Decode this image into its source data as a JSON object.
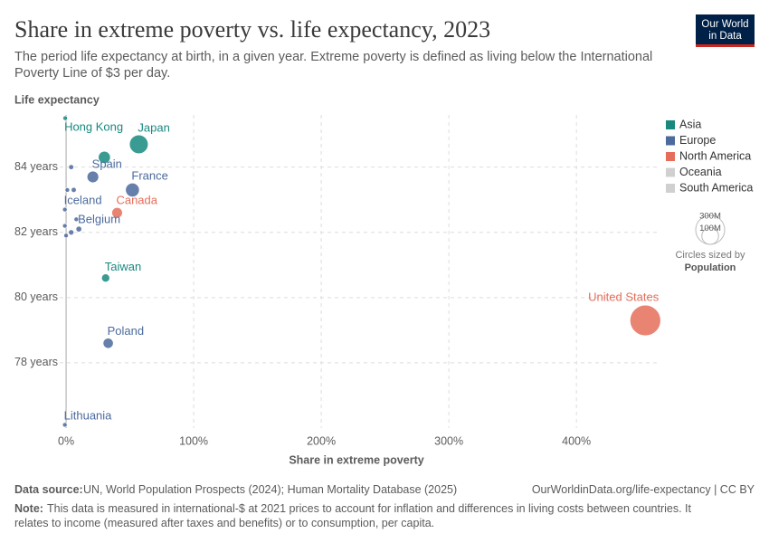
{
  "header": {
    "logo_lines": [
      "Our World",
      "in Data"
    ]
  },
  "chart_data": {
    "type": "scatter",
    "title": "Share in extreme poverty vs. life expectancy, 2023",
    "subtitle_lines": [
      "The period life expectancy at birth, in a given year. Extreme poverty is defined as living below the International",
      "Poverty Line of $3 per day."
    ],
    "y_label": "Life expectancy",
    "x_label": "Share in extreme poverty",
    "xlim": [
      -5,
      463
    ],
    "ylim": [
      76,
      85.6
    ],
    "xticks": [
      {
        "value": 0,
        "label": "0%"
      },
      {
        "value": 100,
        "label": "100%"
      },
      {
        "value": 200,
        "label": "200%"
      },
      {
        "value": 300,
        "label": "300%"
      },
      {
        "value": 400,
        "label": "400%"
      }
    ],
    "yticks": [
      {
        "value": 78,
        "label": "78 years"
      },
      {
        "value": 80,
        "label": "80 years"
      },
      {
        "value": 82,
        "label": "82 years"
      },
      {
        "value": 84,
        "label": "84 years"
      }
    ],
    "grid": true,
    "legend_position": "top-right",
    "size_label": "Circles sized by",
    "size_variable": "Population",
    "size_legend": [
      {
        "value": 300000000,
        "label": "300M"
      },
      {
        "value": 100000000,
        "label": "100M"
      }
    ],
    "series": [
      {
        "name": "Asia",
        "color": "#18897f",
        "x": [
          -0.7,
          57,
          30,
          31
        ],
        "values": [
          85.5,
          84.7,
          84.3,
          80.6
        ],
        "sizes": [
          7500000,
          124000000,
          51700000,
          23400000
        ],
        "labels": [
          "Hong Kong",
          "Japan",
          null,
          "Taiwan"
        ]
      },
      {
        "name": "Europe",
        "color": "#4c6a9c",
        "x": [
          21,
          52,
          -1,
          10,
          33,
          -1,
          4,
          1,
          6,
          -1,
          8,
          0,
          4
        ],
        "values": [
          83.7,
          83.3,
          82.7,
          82.1,
          78.6,
          76.1,
          84.0,
          83.3,
          83.3,
          82.2,
          82.4,
          81.9,
          82.0
        ],
        "sizes": [
          48000000,
          68000000,
          400000,
          11800000,
          37000000,
          2900000,
          9000000,
          5000000,
          9000000,
          5000000,
          6000000,
          5000000,
          10000000
        ],
        "labels": [
          "Spain",
          "France",
          "Iceland",
          "Belgium",
          "Poland",
          "Lithuania",
          null,
          null,
          null,
          null,
          null,
          null,
          null
        ]
      },
      {
        "name": "North America",
        "color": "#e56e5a",
        "x": [
          40,
          454
        ],
        "values": [
          82.6,
          79.3
        ],
        "sizes": [
          40000000,
          335000000
        ],
        "labels": [
          "Canada",
          "United States"
        ]
      },
      {
        "name": "Oceania",
        "color": "#d0d0d0",
        "x": [],
        "values": [],
        "sizes": [],
        "labels": []
      },
      {
        "name": "South America",
        "color": "#d0d0d0",
        "x": [],
        "values": [],
        "sizes": [],
        "labels": []
      }
    ]
  },
  "footer": {
    "source_label": "Data source:",
    "source": "UN, World Population Prospects (2024); Human Mortality Database (2025)",
    "url": "OurWorldinData.org/life-expectancy | CC BY",
    "note_label": "Note:",
    "note_lines": [
      "This data is measured in international-$ at 2021 prices to account for inflation and differences in living costs between countries. It",
      "relates to income (measured after taxes and benefits) or to consumption, per capita."
    ]
  }
}
